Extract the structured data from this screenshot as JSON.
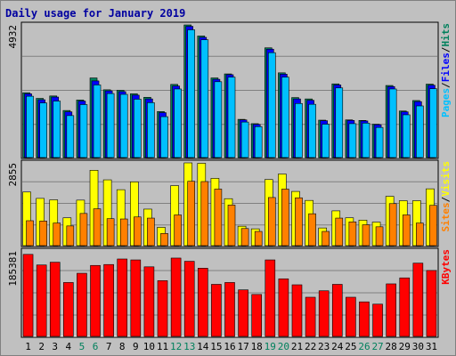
{
  "chart_data": [
    {
      "type": "bar",
      "title": "Daily usage for January 2019",
      "categories": [
        "1",
        "2",
        "3",
        "4",
        "5",
        "6",
        "7",
        "8",
        "9",
        "10",
        "11",
        "12",
        "13",
        "14",
        "15",
        "16",
        "17",
        "18",
        "19",
        "20",
        "21",
        "22",
        "23",
        "24",
        "25",
        "26",
        "27",
        "28",
        "29",
        "30",
        "31"
      ],
      "weekend_days": [
        "5",
        "6",
        "12",
        "13",
        "19",
        "20",
        "26",
        "27"
      ],
      "ymax_label": "4932",
      "ylim": [
        0,
        4932
      ],
      "right_label": [
        "Pages",
        "Files",
        "Hits"
      ],
      "series": [
        {
          "name": "Hits",
          "values": [
            2410,
            2200,
            2290,
            1750,
            2140,
            2960,
            2520,
            2500,
            2370,
            2240,
            1710,
            2720,
            4932,
            4520,
            2960,
            3110,
            1420,
            1260,
            4080,
            3150,
            2230,
            2180,
            1390,
            2740,
            1400,
            1380,
            1240,
            2680,
            1730,
            2120,
            2730
          ]
        },
        {
          "name": "Files",
          "values": [
            2370,
            2150,
            2250,
            1700,
            2100,
            2850,
            2480,
            2450,
            2320,
            2180,
            1670,
            2660,
            4880,
            4470,
            2910,
            3080,
            1400,
            1230,
            4030,
            3100,
            2180,
            2130,
            1370,
            2700,
            1380,
            1360,
            1220,
            2640,
            1700,
            2080,
            2690
          ]
        },
        {
          "name": "Pages",
          "values": [
            2280,
            2030,
            2100,
            1560,
            1970,
            2700,
            2380,
            2350,
            2170,
            2040,
            1520,
            2550,
            4750,
            4380,
            2820,
            2990,
            1320,
            1150,
            3900,
            2990,
            2010,
            1980,
            1240,
            2590,
            1260,
            1280,
            1120,
            2550,
            1590,
            1920,
            2560
          ]
        }
      ]
    },
    {
      "type": "bar",
      "ymax_label": "2855",
      "ylim": [
        0,
        2855
      ],
      "right_label": [
        "Sites",
        "Visits"
      ],
      "series": [
        {
          "name": "Visits",
          "values": [
            1850,
            1630,
            1580,
            960,
            1570,
            2600,
            2270,
            1930,
            2200,
            1260,
            630,
            2070,
            2855,
            2840,
            2320,
            1620,
            670,
            580,
            2280,
            2470,
            1870,
            1560,
            610,
            1200,
            960,
            880,
            810,
            1700,
            1550,
            1550,
            1960
          ]
        },
        {
          "name": "Sites",
          "values": [
            860,
            850,
            780,
            680,
            1110,
            1270,
            930,
            920,
            990,
            950,
            420,
            1060,
            2220,
            2210,
            1950,
            1400,
            590,
            490,
            1660,
            1950,
            1650,
            1100,
            490,
            950,
            820,
            720,
            650,
            1450,
            1060,
            780,
            1390
          ]
        }
      ]
    },
    {
      "type": "bar",
      "ymax_label": "185381",
      "ylim": [
        0,
        185381
      ],
      "right_label": [
        "KBytes"
      ],
      "series": [
        {
          "name": "KBytes",
          "values": [
            178000,
            155000,
            161000,
            117000,
            137000,
            154000,
            156000,
            168000,
            166000,
            151000,
            121000,
            170000,
            163000,
            148000,
            113000,
            117000,
            101000,
            91000,
            166000,
            125000,
            112000,
            85000,
            99000,
            113000,
            85000,
            75000,
            70000,
            114000,
            127000,
            159000,
            143000
          ]
        }
      ]
    }
  ],
  "colors": {
    "hits": "#00805c",
    "files": "#0000ff",
    "pages": "#00c0ff",
    "visits": "#ffff00",
    "sites": "#ff8000",
    "kbytes": "#ff0000",
    "title": "#0000a0",
    "weekend": "#00805c",
    "panel": "#c0c0c0"
  }
}
